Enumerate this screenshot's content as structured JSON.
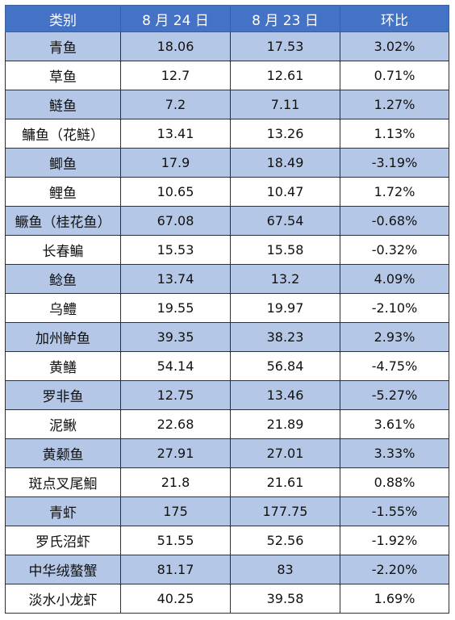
{
  "table": {
    "headers": [
      "类别",
      "8 月 24 日",
      "8 月 23 日",
      "环比"
    ],
    "rows": [
      [
        "青鱼",
        "18.06",
        "17.53",
        "3.02%"
      ],
      [
        "草鱼",
        "12.7",
        "12.61",
        "0.71%"
      ],
      [
        "鲢鱼",
        "7.2",
        "7.11",
        "1.27%"
      ],
      [
        "鳙鱼（花鲢）",
        "13.41",
        "13.26",
        "1.13%"
      ],
      [
        "鲫鱼",
        "17.9",
        "18.49",
        "-3.19%"
      ],
      [
        "鲤鱼",
        "10.65",
        "10.47",
        "1.72%"
      ],
      [
        "鳜鱼（桂花鱼）",
        "67.08",
        "67.54",
        "-0.68%"
      ],
      [
        "长春鳊",
        "15.53",
        "15.58",
        "-0.32%"
      ],
      [
        "鲶鱼",
        "13.74",
        "13.2",
        "4.09%"
      ],
      [
        "乌鳢",
        "19.55",
        "19.97",
        "-2.10%"
      ],
      [
        "加州鲈鱼",
        "39.35",
        "38.23",
        "2.93%"
      ],
      [
        "黄鳝",
        "54.14",
        "56.84",
        "-4.75%"
      ],
      [
        "罗非鱼",
        "12.75",
        "13.46",
        "-5.27%"
      ],
      [
        "泥鳅",
        "22.68",
        "21.89",
        "3.61%"
      ],
      [
        "黄颡鱼",
        "27.91",
        "27.01",
        "3.33%"
      ],
      [
        "斑点叉尾鮰",
        "21.8",
        "21.61",
        "0.88%"
      ],
      [
        "青虾",
        "175",
        "177.75",
        "-1.55%"
      ],
      [
        "罗氏沼虾",
        "51.55",
        "52.56",
        "-1.92%"
      ],
      [
        "中华绒螯蟹",
        "81.17",
        "83",
        "-2.20%"
      ],
      [
        "淡水小龙虾",
        "40.25",
        "39.58",
        "1.69%"
      ]
    ]
  },
  "colors": {
    "header_bg": "#4472c4",
    "shaded_row_bg": "#b4c7e7",
    "plain_row_bg": "#ffffff",
    "border": "#2f2f2f"
  }
}
